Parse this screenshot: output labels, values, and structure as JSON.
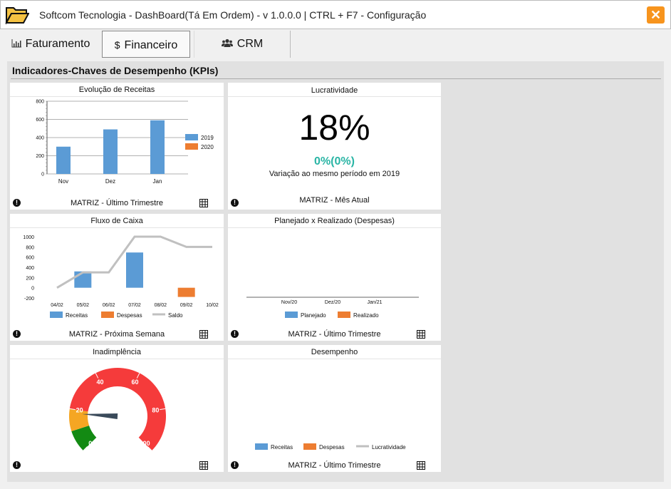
{
  "window": {
    "title": "Softcom Tecnologia - DashBoard(Tá Em Ordem) - v 1.0.0.0 | CTRL + F7 - Configuração",
    "close_glyph": "✕"
  },
  "tabs": [
    {
      "label": "Faturamento",
      "icon": "bar-chart-icon"
    },
    {
      "label": "Financeiro",
      "icon": "dollar-icon"
    },
    {
      "label": "CRM",
      "icon": "users-icon"
    }
  ],
  "panel": {
    "title": "Indicadores-Chaves de Desempenho (KPIs)"
  },
  "cards": {
    "receitas": {
      "title": "Evolução de Receitas",
      "footer": "MATRIZ - Último Trimestre",
      "chart_data": {
        "type": "bar",
        "categories": [
          "Nov",
          "Dez",
          "Jan"
        ],
        "series": [
          {
            "name": "2019",
            "values": [
              300,
              490,
              590
            ],
            "color": "#5b9bd5"
          },
          {
            "name": "2020",
            "values": [
              0,
              0,
              0
            ],
            "color": "#ed7d31"
          }
        ],
        "ylim": [
          0,
          800
        ],
        "yticks": [
          "0",
          "200",
          "400",
          "600",
          "800"
        ],
        "legend": "right",
        "grid": true
      }
    },
    "lucratividade": {
      "title": "Lucratividade",
      "value": "18%",
      "variation": "0%(0%)",
      "variation_label": "Variação ao mesmo período em 2019",
      "footer": "MATRIZ - Mês Atual",
      "variation_color": "#2ab5a5"
    },
    "fluxo": {
      "title": "Fluxo de Caixa",
      "footer": "MATRIZ - Próxima Semana",
      "chart_data": {
        "type": "bar",
        "categories": [
          "04/02",
          "05/02",
          "06/02",
          "07/02",
          "08/02",
          "09/02",
          "10/02"
        ],
        "series": [
          {
            "name": "Receitas",
            "type": "bar",
            "values": [
              0,
              320,
              0,
              690,
              0,
              0,
              0
            ],
            "color": "#5b9bd5"
          },
          {
            "name": "Despesas",
            "type": "bar",
            "values": [
              0,
              0,
              0,
              0,
              0,
              -180,
              0
            ],
            "color": "#ed7d31"
          },
          {
            "name": "Saldo",
            "type": "line",
            "values": [
              0,
              300,
              300,
              1000,
              1000,
              800,
              800
            ],
            "color": "#c0c0c0"
          }
        ],
        "ylim": [
          -200,
          1000
        ],
        "yticks": [
          "-200",
          "0",
          "200",
          "400",
          "600",
          "800",
          "1000"
        ],
        "legend": "bottom"
      }
    },
    "planejado": {
      "title": "Planejado x Realizado (Despesas)",
      "footer": "MATRIZ - Último Trimestre",
      "chart_data": {
        "type": "bar",
        "categories": [
          "Nov/20",
          "Dez/20",
          "Jan/21"
        ],
        "series": [
          {
            "name": "Planejado",
            "values": [
              0,
              0,
              0
            ],
            "color": "#5b9bd5"
          },
          {
            "name": "Realizado",
            "values": [
              0,
              0,
              0
            ],
            "color": "#ed7d31"
          }
        ],
        "legend": "bottom"
      }
    },
    "inadimplencia": {
      "title": "Inadimplência",
      "chart_data": {
        "type": "gauge",
        "min": 0,
        "max": 100,
        "value": 18,
        "ticks": [
          "0",
          "20",
          "40",
          "60",
          "80",
          "100"
        ],
        "bands": [
          {
            "from": 0,
            "to": 10,
            "color": "#138a13"
          },
          {
            "from": 10,
            "to": 20,
            "color": "#f5a623"
          },
          {
            "from": 20,
            "to": 100,
            "color": "#f53b3b"
          }
        ]
      }
    },
    "desempenho": {
      "title": "Desempenho",
      "footer": "MATRIZ - Último Trimestre",
      "chart_data": {
        "type": "bar",
        "categories": [],
        "series": [
          {
            "name": "Receitas",
            "type": "bar",
            "values": [],
            "color": "#5b9bd5"
          },
          {
            "name": "Despesas",
            "type": "bar",
            "values": [],
            "color": "#ed7d31"
          },
          {
            "name": "Lucratividade",
            "type": "line",
            "values": [],
            "color": "#c0c0c0"
          }
        ],
        "legend": "bottom"
      }
    }
  },
  "icons": {
    "warning": "!",
    "table": "table-icon"
  }
}
